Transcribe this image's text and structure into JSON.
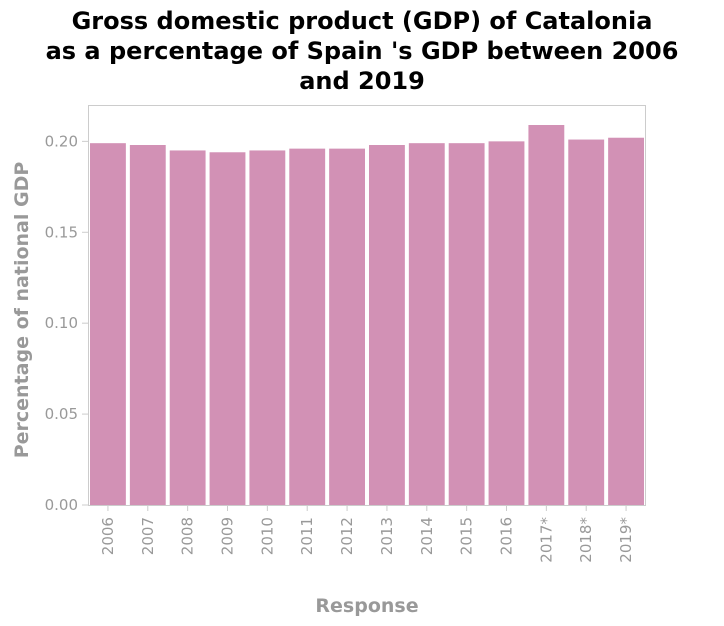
{
  "chart_data": {
    "type": "bar",
    "title_lines": [
      "Gross domestic product (GDP) of Catalonia",
      "as a percentage of Spain 's GDP between 2006",
      "and 2019"
    ],
    "xlabel": "Response",
    "ylabel": "Percentage of national GDP",
    "categories": [
      "2006",
      "2007",
      "2008",
      "2009",
      "2010",
      "2011",
      "2012",
      "2013",
      "2014",
      "2015",
      "2016",
      "2017*",
      "2018*",
      "2019*"
    ],
    "values": [
      0.199,
      0.198,
      0.195,
      0.194,
      0.195,
      0.196,
      0.196,
      0.198,
      0.199,
      0.199,
      0.2,
      0.209,
      0.201,
      0.202
    ],
    "ylim": [
      0,
      0.22
    ],
    "yticks": [
      0.0,
      0.05,
      0.1,
      0.15,
      0.2
    ],
    "ytick_labels": [
      "0.00",
      "0.05",
      "0.10",
      "0.15",
      "0.20"
    ],
    "grid": false,
    "bar_color": "#d291b5",
    "axis_color": "#cccccc",
    "text_color": "#999999"
  }
}
